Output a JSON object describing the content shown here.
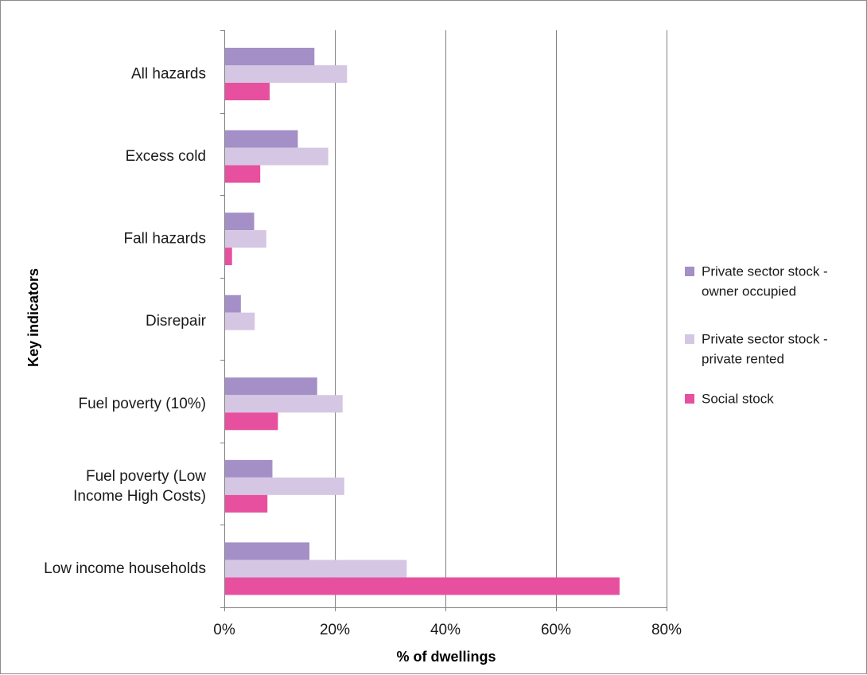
{
  "chart_data": {
    "type": "bar",
    "orientation": "horizontal",
    "categories": [
      [
        "All hazards"
      ],
      [
        "Excess cold"
      ],
      [
        "Fall hazards"
      ],
      [
        "Disrepair"
      ],
      [
        "Fuel poverty (10%)"
      ],
      [
        "Fuel poverty (Low",
        "Income High Costs)"
      ],
      [
        "Low income households"
      ]
    ],
    "series": [
      {
        "name": "Private sector stock - owner occupied",
        "legend_lines": [
          "Private sector stock -",
          "owner occupied"
        ],
        "color": "#a48fc6",
        "values": [
          16.3,
          13.3,
          5.4,
          3.0,
          16.8,
          8.7,
          15.4
        ]
      },
      {
        "name": "Private sector stock - private rented",
        "legend_lines": [
          "Private sector stock -",
          "private rented"
        ],
        "color": "#d5c6e3",
        "values": [
          22.2,
          18.8,
          7.6,
          5.5,
          21.4,
          21.7,
          33.0
        ]
      },
      {
        "name": "Social stock",
        "legend_lines": [
          "Social stock"
        ],
        "color": "#e7509e",
        "values": [
          8.2,
          6.5,
          1.4,
          0.1,
          9.7,
          7.8,
          71.5
        ]
      }
    ],
    "xlabel": "% of dwellings",
    "ylabel": "Key indicators",
    "xlim": [
      0,
      80
    ],
    "xticks": [
      0,
      20,
      40,
      60,
      80
    ],
    "xtick_labels": [
      "0%",
      "20%",
      "40%",
      "60%",
      "80%"
    ],
    "grid": "vertical major gridlines",
    "legend_position": "right"
  }
}
